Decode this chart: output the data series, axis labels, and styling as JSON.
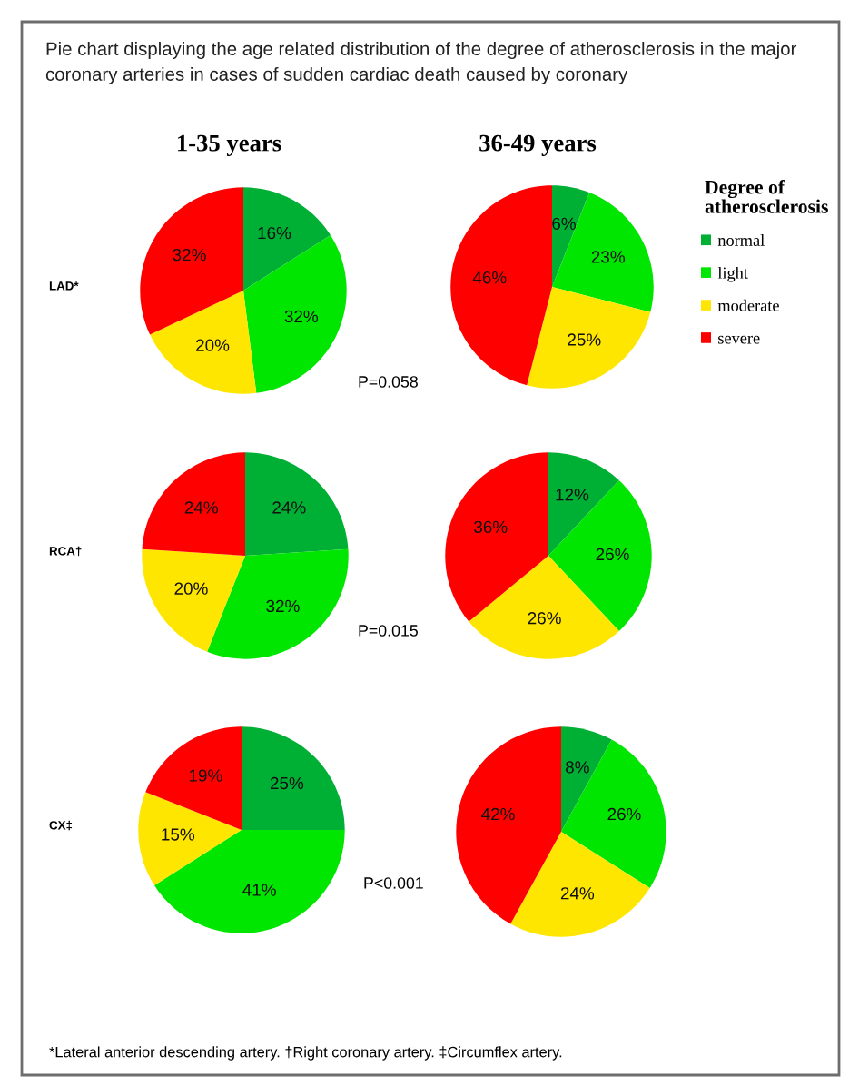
{
  "chart_data": [
    {
      "type": "pie",
      "title": "Pie chart displaying the age related distribution of the degree of atherosclerosis in the major coronary arteries in cases of sudden cardiac death caused by coronary",
      "subtitle": "1-35 years",
      "ylabel": "LAD*",
      "categories": [
        "normal",
        "light",
        "moderate",
        "severe"
      ],
      "values": [
        16,
        32,
        20,
        32
      ],
      "value_labels": [
        "16%",
        "32%",
        "20%",
        "32%"
      ],
      "colors": [
        "#00b035",
        "#00e600",
        "#ffe600",
        "#ff0000"
      ],
      "annotations": [
        "P=0.058"
      ],
      "legend": "right",
      "legend_title": "Degree of atherosclerosis"
    },
    {
      "type": "pie",
      "subtitle": "36-49 years",
      "values": [
        6,
        23,
        25,
        46
      ],
      "value_labels": [
        "6%",
        "23%",
        "25%",
        "46%"
      ],
      "colors": [
        "#00b035",
        "#00e600",
        "#ffe600",
        "#ff0000"
      ]
    },
    {
      "type": "pie",
      "ylabel": "RCA†",
      "values": [
        24,
        32,
        20,
        24
      ],
      "value_labels": [
        "24%",
        "32%",
        "20%",
        "24%"
      ],
      "colors": [
        "#00b035",
        "#00e600",
        "#ffe600",
        "#ff0000"
      ],
      "annotations": [
        "P=0.015"
      ]
    },
    {
      "type": "pie",
      "values": [
        12,
        26,
        26,
        36
      ],
      "value_labels": [
        "12%",
        "26%",
        "26%",
        "36%"
      ],
      "colors": [
        "#00b035",
        "#00e600",
        "#ffe600",
        "#ff0000"
      ]
    },
    {
      "type": "pie",
      "ylabel": "CX‡",
      "values": [
        25,
        41,
        15,
        19
      ],
      "value_labels": [
        "25%",
        "41%",
        "15%",
        "19%"
      ],
      "colors": [
        "#00b035",
        "#00e600",
        "#ffe600",
        "#ff0000"
      ],
      "annotations": [
        "P<0.001",
        "*Lateral anterior descending artery. †Right coronary artery. ‡Circumflex artery."
      ]
    },
    {
      "type": "pie",
      "values": [
        8,
        26,
        24,
        42
      ],
      "value_labels": [
        "8%",
        "26%",
        "24%",
        "42%"
      ],
      "colors": [
        "#00b035",
        "#00e600",
        "#ffe600",
        "#ff0000"
      ]
    }
  ]
}
